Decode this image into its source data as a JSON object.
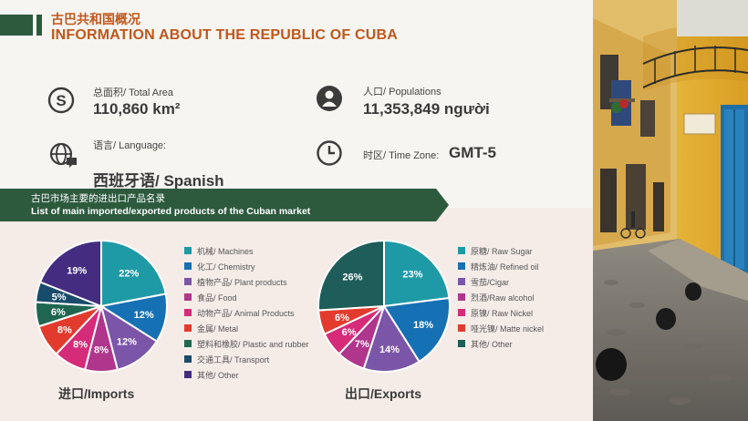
{
  "header": {
    "title_cn": "古巴共和国概况",
    "title_en": "INFORMATION ABOUT THE REPUBLIC OF CUBA"
  },
  "info": {
    "area": {
      "label": "总面积/ Total Area",
      "value": "110,860 km²",
      "icon": "currency-icon"
    },
    "population": {
      "label": "人口/ Populations",
      "value": "11,353,849 người",
      "icon": "person-icon"
    },
    "language": {
      "label": "语言/ Language:",
      "value": "西班牙语/ Spanish",
      "icon": "globe-chat-icon"
    },
    "timezone": {
      "label": "时区/ Time Zone:",
      "value": "GMT-5",
      "icon": "clock-icon"
    }
  },
  "banner": {
    "cn": "古巴市场主要的进出口产品名录",
    "en": "List of main imported/exported products of the Cuban market"
  },
  "chart_data": [
    {
      "type": "pie",
      "title": "进口/Imports",
      "categories": [
        "机械/ Machines",
        "化工/ Chemistry",
        "植物产品/ Plant products",
        "食品/ Food",
        "动物产品/ Animal Products",
        "金属/ Metal",
        "塑料和橡胶/ Plastic and rubber",
        "交通工具/ Transport",
        "其他/ Other"
      ],
      "values": [
        22,
        12,
        12,
        8,
        8,
        8,
        6,
        5,
        19
      ],
      "labels": [
        "22%",
        "12%",
        "12%",
        "8%",
        "8%",
        "8%",
        "6%",
        "5%",
        "19%"
      ],
      "colors": [
        "#1e9aa6",
        "#1670b4",
        "#7b55a8",
        "#b0368c",
        "#d62b78",
        "#e23b2e",
        "#1f6650",
        "#194b6a",
        "#442c80"
      ]
    },
    {
      "type": "pie",
      "title": "出口/Exports",
      "categories": [
        "原糖/ Raw Sugar",
        "精炼油/ Refined oil",
        "雪茄/Cigar",
        "烈酒/Raw alcohol",
        "原镍/ Raw Nickel",
        "哑光镍/ Matte nickel",
        "其他/ Other"
      ],
      "values": [
        23,
        18,
        14,
        7,
        6,
        6,
        26
      ],
      "labels": [
        "23%",
        "18%",
        "14%",
        "7%",
        "6%",
        "6%",
        "26%"
      ],
      "colors": [
        "#1e9aa6",
        "#1670b4",
        "#7b55a8",
        "#b0368c",
        "#d62b78",
        "#e23b2e",
        "#1f5d5a"
      ]
    }
  ]
}
